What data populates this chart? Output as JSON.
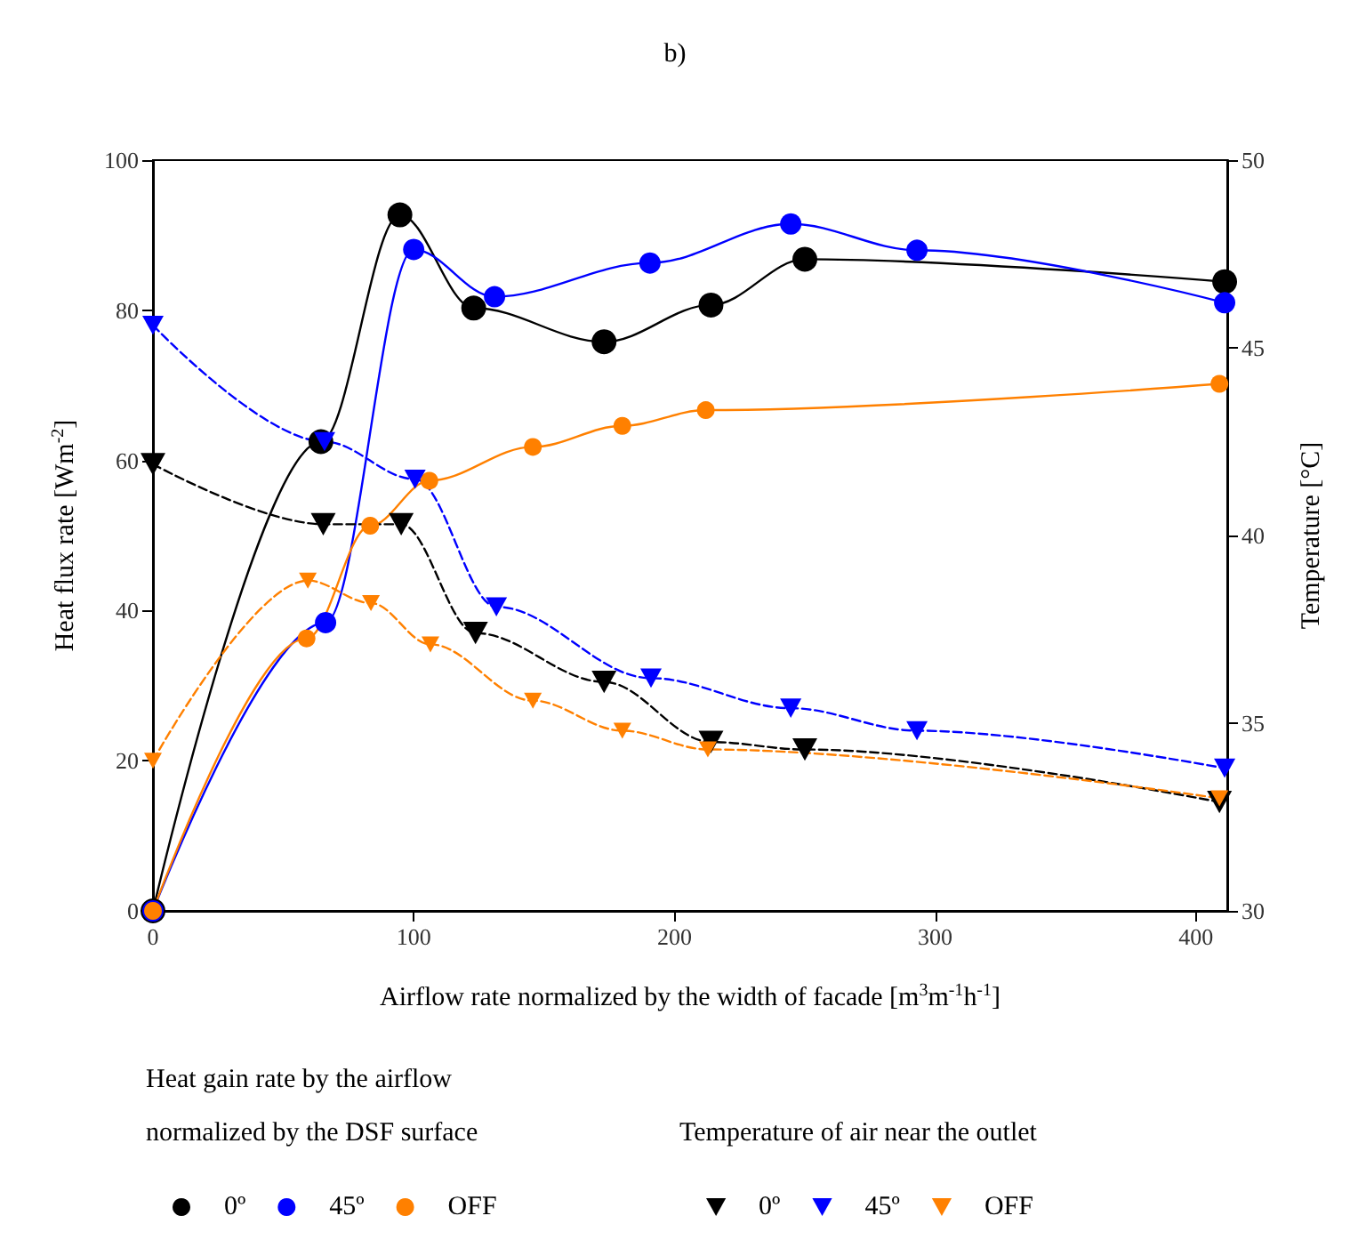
{
  "chart_data": {
    "type": "line",
    "title": "b)",
    "xlabel": "Airflow rate normalized by the width of facade [m$^{3}$m$^{-1}$h$^{-1}$]",
    "ylabel": "Heat flux rate [Wm$^{-2}$]",
    "y2label": "Temperature [°C]",
    "legend_title": [
      "Heat gain rate by the airflow\nnormalized by the DSF surface",
      "Temperature of air near the outlet"
    ],
    "xlim": [
      0,
      412
    ],
    "xticks": [
      0,
      100,
      200,
      300,
      400
    ],
    "ylim": [
      0,
      100
    ],
    "yticks": [
      0,
      20,
      40,
      60,
      80,
      100
    ],
    "y2lim": [
      30,
      50
    ],
    "y2ticks": [
      30,
      35,
      40,
      45,
      50
    ],
    "legend": "bottom",
    "grid": false,
    "series": [
      {
        "name": "0º",
        "color": "#000000",
        "marker": "circle",
        "line_style": "solid",
        "x": [
          0,
          64.4,
          94.7,
          123,
          173,
          214,
          250,
          411
        ],
        "values": [
          0,
          62.5,
          92.7,
          80.3,
          75.8,
          80.7,
          86.8,
          83.8
        ]
      },
      {
        "name": "45º",
        "color": "#0000ff",
        "marker": "circle",
        "line_style": "solid",
        "x": [
          0,
          66.2,
          100,
          131,
          190.6,
          244.6,
          293,
          411
        ],
        "values": [
          0,
          38.4,
          88.1,
          81.8,
          86.3,
          91.5,
          88.0,
          81.0
        ]
      },
      {
        "name": "OFF",
        "color": "#ff8000",
        "marker": "circle",
        "line_style": "solid",
        "x": [
          0,
          58.9,
          83.3,
          106,
          145.7,
          180,
          212,
          409
        ],
        "values": [
          0,
          36.3,
          51.3,
          57.3,
          61.8,
          64.6,
          66.7,
          70.2
        ]
      },
      {
        "name": "0º",
        "color": "#000000",
        "marker": "triangle",
        "line_style": "dashed",
        "axis": "y2",
        "x": [
          0,
          65.3,
          95.2,
          123.7,
          173,
          214,
          250,
          409
        ],
        "values": [
          41.9,
          40.3,
          40.3,
          37.4,
          36.1,
          34.5,
          34.3,
          32.9
        ]
      },
      {
        "name": "45º",
        "color": "#0000ff",
        "marker": "triangle",
        "line_style": "dashed",
        "axis": "y2",
        "x": [
          0,
          65.8,
          100.5,
          131.7,
          191,
          244.6,
          293,
          411
        ],
        "values": [
          45.6,
          42.5,
          41.5,
          38.1,
          36.2,
          35.4,
          34.8,
          33.8
        ]
      },
      {
        "name": "OFF",
        "color": "#ff8000",
        "marker": "triangle",
        "line_style": "dashed",
        "axis": "y2",
        "x": [
          0,
          59.4,
          83.6,
          106.4,
          145.7,
          180,
          212.8,
          409
        ],
        "values": [
          34.0,
          38.8,
          38.2,
          37.1,
          35.6,
          34.8,
          34.3,
          33.0
        ]
      }
    ]
  }
}
